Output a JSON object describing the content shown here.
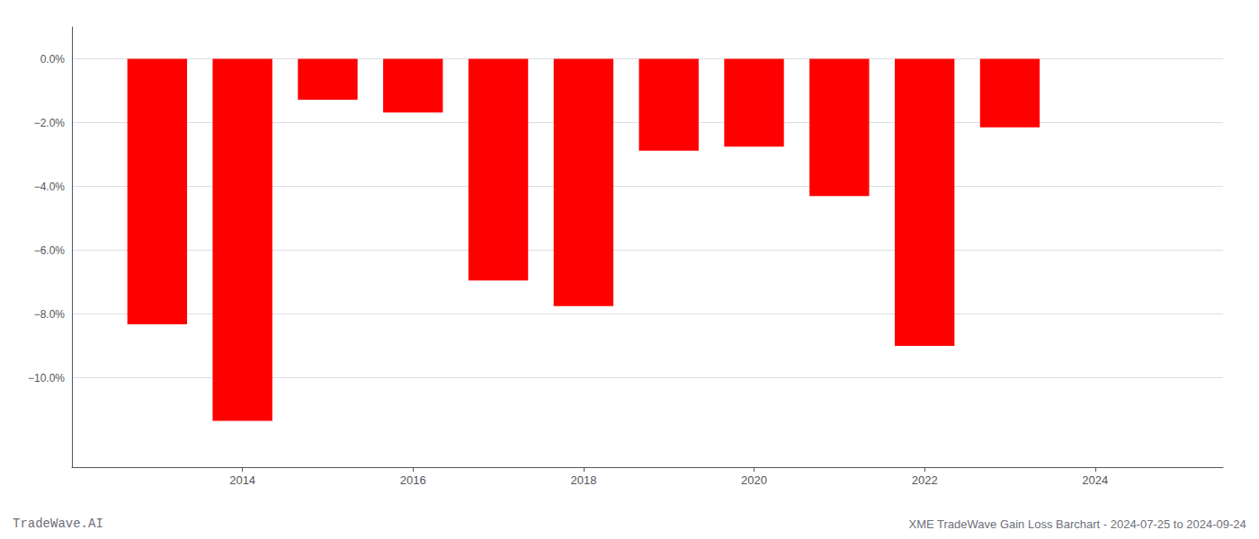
{
  "chart_data": {
    "type": "bar",
    "x": [
      2013,
      2014,
      2015,
      2016,
      2017,
      2018,
      2019,
      2020,
      2021,
      2022,
      2023
    ],
    "values": [
      -0.0832,
      -0.1135,
      -0.0128,
      -0.0168,
      -0.0695,
      -0.0775,
      -0.0288,
      -0.0275,
      -0.043,
      -0.09,
      -0.0215
    ],
    "color": "#ff0000",
    "xlim": [
      2012.0,
      2025.5
    ],
    "xticks": [
      2014,
      2016,
      2018,
      2020,
      2022,
      2024
    ],
    "ylim": [
      -0.128,
      0.01
    ],
    "yticks": [
      {
        "value": 0.0,
        "label": "0.0%"
      },
      {
        "value": -0.02,
        "label": "−2.0%"
      },
      {
        "value": -0.04,
        "label": "−4.0%"
      },
      {
        "value": -0.06,
        "label": "−6.0%"
      },
      {
        "value": -0.08,
        "label": "−8.0%"
      },
      {
        "value": -0.1,
        "label": "−10.0%"
      }
    ],
    "grid": true,
    "annotations": [
      "TradeWave.AI",
      "XME TradeWave Gain Loss Barchart - 2024-07-25 to 2024-09-24"
    ]
  }
}
